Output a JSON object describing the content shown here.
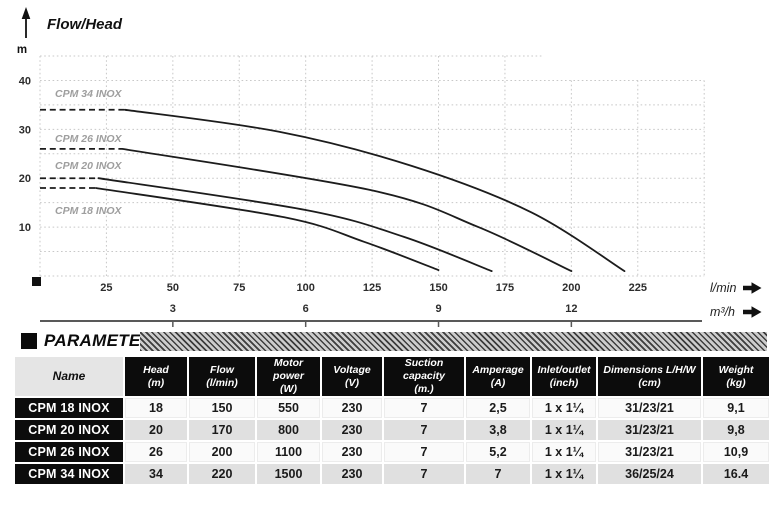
{
  "chart": {
    "title": "Flow/Head",
    "y_axis_unit": "m",
    "x_axis_unit_primary": "l/min",
    "x_axis_unit_secondary": "m³/h",
    "y_ticks": [
      10,
      20,
      30,
      40
    ],
    "x_ticks": [
      25,
      50,
      75,
      100,
      125,
      150,
      175,
      200,
      225
    ],
    "x2_ticks": [
      3,
      6,
      9,
      12
    ]
  },
  "chart_data": {
    "type": "line",
    "title": "Flow/Head",
    "xlabel": "l/min",
    "xlabel_secondary": "m³/h",
    "ylabel": "m",
    "xlim": [
      0,
      250
    ],
    "ylim": [
      0,
      45
    ],
    "grid": "dotted",
    "legend_position": "inline-left-labels",
    "note": "dashed segment marks rated head near zero flow; x2 axis: 3 m³/h = 50 l/min",
    "series": [
      {
        "name": "CPM 34 INOX",
        "rated_head_m": 34,
        "max_flow_lmin": 220,
        "points": [
          [
            0,
            34
          ],
          [
            32,
            34
          ],
          [
            90,
            29.5
          ],
          [
            140,
            22.5
          ],
          [
            185,
            13
          ],
          [
            220,
            1
          ]
        ]
      },
      {
        "name": "CPM 26 INOX",
        "rated_head_m": 26,
        "max_flow_lmin": 200,
        "points": [
          [
            0,
            26
          ],
          [
            31,
            26
          ],
          [
            125,
            17.5
          ],
          [
            165,
            10
          ],
          [
            200,
            1
          ]
        ]
      },
      {
        "name": "CPM 20 INOX",
        "rated_head_m": 20,
        "max_flow_lmin": 170,
        "points": [
          [
            0,
            20
          ],
          [
            22,
            20
          ],
          [
            100,
            13.5
          ],
          [
            137,
            8
          ],
          [
            170,
            1
          ]
        ]
      },
      {
        "name": "CPM 18 INOX",
        "rated_head_m": 18,
        "max_flow_lmin": 150,
        "points": [
          [
            0,
            18
          ],
          [
            21,
            18
          ],
          [
            92,
            12
          ],
          [
            122,
            7
          ],
          [
            150,
            1.2
          ]
        ]
      }
    ]
  },
  "parameters": {
    "section_title": "PARAMETERS",
    "columns": [
      {
        "label": "Name",
        "unit": ""
      },
      {
        "label": "Head",
        "unit": "(m)"
      },
      {
        "label": "Flow",
        "unit": "(l/min)"
      },
      {
        "label": "Motor power",
        "unit": "(W)"
      },
      {
        "label": "Voltage",
        "unit": "(V)"
      },
      {
        "label": "Suction capacity",
        "unit": "(m.)"
      },
      {
        "label": "Amperage",
        "unit": "(A)"
      },
      {
        "label": "Inlet/outlet",
        "unit": "(inch)"
      },
      {
        "label": "Dimensions L/H/W",
        "unit": "(cm)"
      },
      {
        "label": "Weight",
        "unit": "(kg)"
      }
    ],
    "rows": [
      [
        "CPM 18 INOX",
        "18",
        "150",
        "550",
        "230",
        "7",
        "2,5",
        "1 x 1¼",
        "31/23/21",
        "9,1"
      ],
      [
        "CPM 20 INOX",
        "20",
        "170",
        "800",
        "230",
        "7",
        "3,8",
        "1 x 1¼",
        "31/23/21",
        "9,8"
      ],
      [
        "CPM 26 INOX",
        "26",
        "200",
        "1100",
        "230",
        "7",
        "5,2",
        "1 x 1¼",
        "31/23/21",
        "10,9"
      ],
      [
        "CPM 34 INOX",
        "34",
        "220",
        "1500",
        "230",
        "7",
        "7",
        "1 x 1¼",
        "36/25/24",
        "16.4"
      ]
    ]
  },
  "colors": {
    "curve": "#1c1c1c",
    "curve_label": "#9e9e9e",
    "grid": "#c8c8c8",
    "tick_text": "#2d2d2d",
    "axis_line": "#595959",
    "header_bg": "#0c0c0c",
    "row_dark_bg": "#e0e0e0"
  }
}
